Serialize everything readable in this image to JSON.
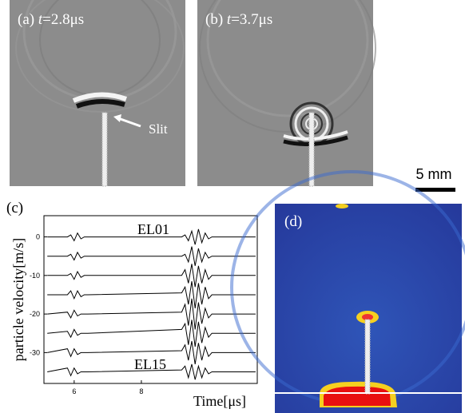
{
  "panels": {
    "a": {
      "label": "(a)",
      "time_var": "t",
      "time": "=2.8μs"
    },
    "b": {
      "label": "(b)",
      "time_var": "t",
      "time": "=3.7μs"
    },
    "c": {
      "label": "(c)"
    },
    "d": {
      "label": "(d)"
    }
  },
  "slit_label": "Slit",
  "scale_bar": "5 mm",
  "chart_data": {
    "type": "line",
    "ylabel": "particle velocity[m/s]",
    "xlabel": "Time[μs]",
    "annotations": [
      "EL01",
      "EL15"
    ],
    "x": [
      5.2,
      5.8,
      5.9,
      6.0,
      6.1,
      6.2,
      6.3,
      6.4,
      9.2,
      9.3,
      9.4,
      9.5,
      9.6,
      9.7,
      9.8,
      9.9,
      10.0,
      10.1,
      10.2,
      11.4
    ],
    "series": [
      {
        "color": "#000000",
        "values": [
          0,
          0,
          0.5,
          -1,
          1,
          -0.5,
          0,
          0,
          0,
          0.5,
          -1,
          1.5,
          -2,
          2,
          -1.5,
          1,
          -0.5,
          0,
          0,
          0
        ]
      },
      {
        "color": "#000000",
        "values": [
          -5,
          -5,
          -4.5,
          -6,
          -4,
          -5.5,
          -5,
          -5,
          -5,
          -4.5,
          -6.5,
          -2.5,
          -7.5,
          -3,
          -6.5,
          -4,
          -5.5,
          -5,
          -5,
          -5
        ]
      },
      {
        "color": "#000000",
        "values": [
          -10,
          -10,
          -9.5,
          -11,
          -9,
          -10.5,
          -10,
          -10,
          -10,
          -8.5,
          -12,
          -7,
          -13,
          -7.5,
          -12,
          -8.5,
          -11,
          -10,
          -10,
          -10
        ]
      },
      {
        "color": "#000000",
        "values": [
          -15,
          -15,
          -14,
          -16,
          -14,
          -15.5,
          -15,
          -15,
          -14.5,
          -13,
          -17.5,
          -11.5,
          -18.5,
          -12,
          -17.5,
          -13,
          -16,
          -15,
          -15,
          -15
        ]
      },
      {
        "color": "#000000",
        "values": [
          -20,
          -19.5,
          -21,
          -19,
          -20.5,
          -20,
          -20,
          -20,
          -19.5,
          -17.5,
          -23,
          -16,
          -24,
          -17,
          -22.5,
          -18.5,
          -21,
          -20,
          -20,
          -20
        ]
      },
      {
        "color": "#000000",
        "values": [
          -25,
          -24.5,
          -26,
          -24,
          -25.5,
          -25,
          -25,
          -25,
          -24,
          -22.5,
          -28,
          -21.5,
          -28.5,
          -22,
          -27.5,
          -23.5,
          -26,
          -25,
          -25,
          -25
        ]
      },
      {
        "color": "#000000",
        "values": [
          -30,
          -29,
          -31,
          -29,
          -30.5,
          -30,
          -30,
          -30,
          -29.5,
          -28,
          -32,
          -27,
          -33,
          -27.5,
          -32,
          -28.5,
          -31,
          -30,
          -30,
          -30
        ]
      },
      {
        "color": "#000000",
        "values": [
          -35,
          -34,
          -36,
          -34,
          -35.5,
          -35,
          -35,
          -35,
          -34.5,
          -33.5,
          -36.5,
          -33,
          -37,
          -33.5,
          -36.5,
          -34,
          -35.5,
          -35,
          -35,
          -35
        ]
      }
    ],
    "xlim": [
      5.1,
      11.45
    ],
    "ylim": [
      -38,
      5.5
    ],
    "xticks": [
      6,
      8
    ],
    "yticks": [
      0,
      -10,
      -20,
      -30
    ]
  }
}
